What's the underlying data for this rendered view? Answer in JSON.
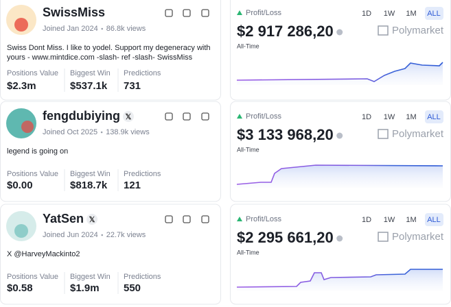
{
  "rows": [
    {
      "profile": {
        "name": "SwissMiss",
        "verified": false,
        "joined": "Joined Jan 2024",
        "views": "86.8k views",
        "bio": [
          "Swiss Dont Miss. I like to yodel. Support my degeneracy with",
          "yours - www.mintdice.com -slash- ref -slash- SwissMiss"
        ],
        "stats": [
          {
            "label": "Positions Value",
            "value": "$2.3m"
          },
          {
            "label": "Biggest Win",
            "value": "$537.1k"
          },
          {
            "label": "Predictions",
            "value": "731"
          }
        ]
      },
      "pnl": {
        "label": "Profit/Loss",
        "tabs": [
          "1D",
          "1W",
          "1M",
          "ALL"
        ],
        "amount": "$2 917 286,20",
        "brand": "Polymarket",
        "period": "All-Time"
      }
    },
    {
      "profile": {
        "name": "fengdubiying",
        "verified": true,
        "joined": "Joined Oct 2025",
        "views": "138.9k views",
        "bio": [
          "legend is going on"
        ],
        "stats": [
          {
            "label": "Positions Value",
            "value": "$0.00"
          },
          {
            "label": "Biggest Win",
            "value": "$818.7k"
          },
          {
            "label": "Predictions",
            "value": "121"
          }
        ]
      },
      "pnl": {
        "label": "Profit/Loss",
        "tabs": [
          "1D",
          "1W",
          "1M",
          "ALL"
        ],
        "amount": "$3 133 968,20",
        "brand": "Polymarket",
        "period": "All-Time"
      }
    },
    {
      "profile": {
        "name": "YatSen",
        "verified": true,
        "joined": "Joined Jun 2024",
        "views": "22.7k views",
        "bio": [
          "X @HarveyMackinto2"
        ],
        "stats": [
          {
            "label": "Positions Value",
            "value": "$0.58"
          },
          {
            "label": "Biggest Win",
            "value": "$1.9m"
          },
          {
            "label": "Predictions",
            "value": "550"
          }
        ]
      },
      "pnl": {
        "label": "Profit/Loss",
        "tabs": [
          "1D",
          "1W",
          "1M",
          "ALL"
        ],
        "amount": "$2 295 661,20",
        "brand": "Polymarket",
        "period": "All-Time"
      }
    }
  ]
}
